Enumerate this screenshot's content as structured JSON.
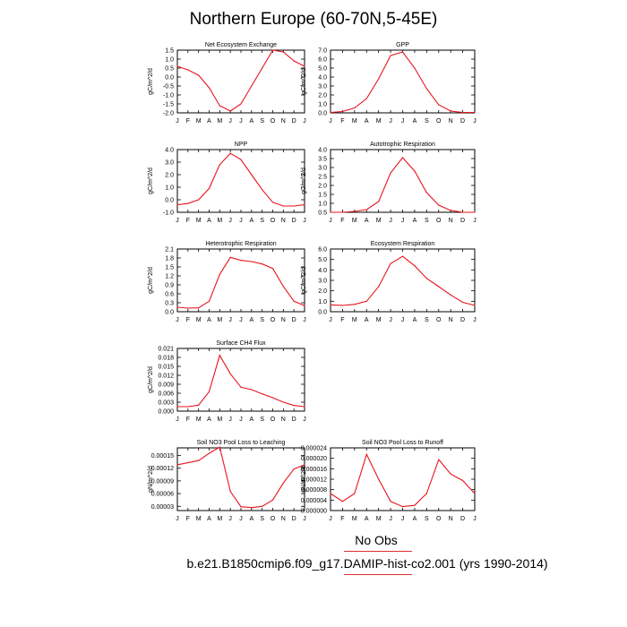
{
  "figure": {
    "title": "Northern Europe (60-70N,5-45E)",
    "no_obs_label": "No Obs",
    "case_label": "b.e21.B1850cmip6.f09_g17.DAMIP-hist-co2.001 (yrs 1990-2014)",
    "line_color": "#e8141e"
  },
  "chart_data": [
    {
      "type": "line",
      "title": "Net Ecosystem Exchange",
      "ylabel": "gC/m^2/d",
      "x_tick_labels": [
        "J",
        "F",
        "M",
        "A",
        "M",
        "J",
        "J",
        "A",
        "S",
        "O",
        "N",
        "D",
        "J"
      ],
      "y_tick_labels": [
        "-2.0",
        "-1.5",
        "-1.0",
        "-0.5",
        "0.0",
        "0.5",
        "1.0",
        "1.5"
      ],
      "ylim": [
        -2.0,
        1.5
      ],
      "series": [
        {
          "values": [
            0.6,
            0.4,
            0.1,
            -0.6,
            -1.6,
            -1.9,
            -1.5,
            -0.5,
            0.5,
            1.5,
            1.4,
            0.9,
            0.6
          ]
        }
      ]
    },
    {
      "type": "line",
      "title": "GPP",
      "ylabel": "gC/m^2/d",
      "x_tick_labels": [
        "J",
        "F",
        "M",
        "A",
        "M",
        "J",
        "J",
        "A",
        "S",
        "O",
        "N",
        "D",
        "J"
      ],
      "y_tick_labels": [
        "0.0",
        "1.0",
        "2.0",
        "3.0",
        "4.0",
        "5.0",
        "6.0",
        "7.0"
      ],
      "ylim": [
        0.0,
        7.0
      ],
      "series": [
        {
          "values": [
            0.05,
            0.15,
            0.55,
            1.6,
            3.8,
            6.4,
            6.8,
            5.0,
            2.7,
            0.9,
            0.2,
            0.05,
            0.05
          ]
        }
      ]
    },
    {
      "type": "line",
      "title": "NPP",
      "ylabel": "gC/m^2/d",
      "x_tick_labels": [
        "J",
        "F",
        "M",
        "A",
        "M",
        "J",
        "J",
        "A",
        "S",
        "O",
        "N",
        "D",
        "J"
      ],
      "y_tick_labels": [
        "-1.0",
        "0.0",
        "1.0",
        "2.0",
        "3.0",
        "4.0"
      ],
      "ylim": [
        -1.0,
        4.0
      ],
      "series": [
        {
          "values": [
            -0.4,
            -0.3,
            0.0,
            0.9,
            2.8,
            3.7,
            3.2,
            2.0,
            0.8,
            -0.2,
            -0.5,
            -0.5,
            -0.4
          ]
        }
      ]
    },
    {
      "type": "line",
      "title": "Autotrophic Respiration",
      "ylabel": "gC/m^2/d",
      "x_tick_labels": [
        "J",
        "F",
        "M",
        "A",
        "M",
        "J",
        "J",
        "A",
        "S",
        "O",
        "N",
        "D",
        "J"
      ],
      "y_tick_labels": [
        "0.5",
        "1.0",
        "1.5",
        "2.0",
        "2.5",
        "3.0",
        "3.5",
        "4.0"
      ],
      "ylim": [
        0.5,
        4.0
      ],
      "series": [
        {
          "values": [
            0.5,
            0.5,
            0.55,
            0.65,
            1.1,
            2.7,
            3.55,
            2.8,
            1.6,
            0.9,
            0.6,
            0.5,
            0.5
          ]
        }
      ]
    },
    {
      "type": "line",
      "title": "Heterotrophic Respiration",
      "ylabel": "gC/m^2/d",
      "x_tick_labels": [
        "J",
        "F",
        "M",
        "A",
        "M",
        "J",
        "J",
        "A",
        "S",
        "O",
        "N",
        "D",
        "J"
      ],
      "y_tick_labels": [
        "0.0",
        "0.3",
        "0.6",
        "0.9",
        "1.2",
        "1.5",
        "1.8",
        "2.1"
      ],
      "ylim": [
        0.0,
        2.1
      ],
      "series": [
        {
          "values": [
            0.15,
            0.12,
            0.13,
            0.35,
            1.25,
            1.82,
            1.72,
            1.68,
            1.6,
            1.45,
            0.85,
            0.35,
            0.2
          ]
        }
      ]
    },
    {
      "type": "line",
      "title": "Ecosystem Respiration",
      "ylabel": "gC/m^2/d",
      "x_tick_labels": [
        "J",
        "F",
        "M",
        "A",
        "M",
        "J",
        "J",
        "A",
        "S",
        "O",
        "N",
        "D",
        "J"
      ],
      "y_tick_labels": [
        "0.0",
        "1.0",
        "2.0",
        "3.0",
        "4.0",
        "5.0",
        "6.0"
      ],
      "ylim": [
        0.0,
        6.0
      ],
      "series": [
        {
          "values": [
            0.65,
            0.6,
            0.7,
            1.0,
            2.4,
            4.6,
            5.3,
            4.4,
            3.2,
            2.4,
            1.6,
            0.9,
            0.6
          ]
        }
      ]
    },
    {
      "type": "line",
      "title": "Surface CH4 Flux",
      "ylabel": "gC/m^2/d",
      "x_tick_labels": [
        "J",
        "F",
        "M",
        "A",
        "M",
        "J",
        "J",
        "A",
        "S",
        "O",
        "N",
        "D",
        "J"
      ],
      "y_tick_labels": [
        "0.000",
        "0.003",
        "0.006",
        "0.009",
        "0.012",
        "0.015",
        "0.018",
        "0.021"
      ],
      "ylim": [
        0.0,
        0.021
      ],
      "series": [
        {
          "values": [
            0.0015,
            0.0015,
            0.002,
            0.0065,
            0.0187,
            0.0125,
            0.008,
            0.0072,
            0.0058,
            0.0045,
            0.003,
            0.0019,
            0.0015
          ]
        }
      ]
    },
    {
      "type": "line",
      "title": "Soil NO3 Pool Loss to Leaching",
      "ylabel": "gN/m^2/d",
      "x_tick_labels": [
        "J",
        "F",
        "M",
        "A",
        "M",
        "J",
        "J",
        "A",
        "S",
        "O",
        "N",
        "D",
        "J"
      ],
      "y_tick_labels": [
        "0.00003",
        "0.00006",
        "0.00009",
        "0.00012",
        "0.00015"
      ],
      "ylim": [
        2e-05,
        0.000168
      ],
      "series": [
        {
          "values": [
            0.000128,
            0.000133,
            0.000138,
            0.000155,
            0.00017,
            6.5e-05,
            2.9e-05,
            2.7e-05,
            3e-05,
            4.5e-05,
            8.5e-05,
            0.000118,
            0.000128
          ]
        }
      ]
    },
    {
      "type": "line",
      "title": "Soil NO3 Pool Loss to Runoff",
      "ylabel": "gN/m^2/d",
      "x_tick_labels": [
        "J",
        "F",
        "M",
        "A",
        "M",
        "J",
        "J",
        "A",
        "S",
        "O",
        "N",
        "D",
        "J"
      ],
      "y_tick_labels": [
        "0.000000",
        "0.000004",
        "0.000008",
        "0.000012",
        "0.000016",
        "0.000020",
        "0.000024"
      ],
      "ylim": [
        0.0,
        2.4e-05
      ],
      "series": [
        {
          "values": [
            6.5e-06,
            3.5e-06,
            6.5e-06,
            2.15e-05,
            1.2e-05,
            3.5e-06,
            1.5e-06,
            2e-06,
            6.5e-06,
            1.95e-05,
            1.4e-05,
            1.15e-05,
            6.5e-06
          ]
        }
      ]
    }
  ]
}
